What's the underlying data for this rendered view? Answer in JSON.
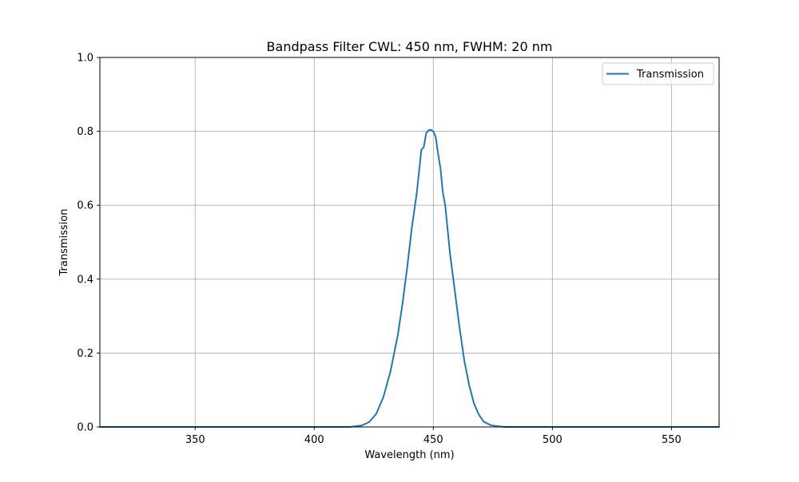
{
  "chart_data": {
    "type": "line",
    "title": "Bandpass Filter CWL: 450 nm, FWHM: 20 nm",
    "xlabel": "Wavelength (nm)",
    "ylabel": "Transmission",
    "xlim": [
      310,
      570
    ],
    "ylim": [
      0,
      1.0
    ],
    "xticks": [
      350,
      400,
      450,
      500,
      550
    ],
    "xtick_labels": [
      "350",
      "400",
      "450",
      "500",
      "550"
    ],
    "yticks": [
      0.0,
      0.2,
      0.4,
      0.6,
      0.8,
      1.0
    ],
    "ytick_labels": [
      "0.0",
      "0.2",
      "0.4",
      "0.6",
      "0.8",
      "1.0"
    ],
    "grid": true,
    "legend_position": "top-right",
    "series": [
      {
        "name": "Transmission",
        "color": "#1f77b4",
        "x": [
          310,
          350,
          400,
          415,
          420,
          423,
          426,
          429,
          432,
          435,
          437,
          439,
          441,
          443,
          444,
          445,
          446,
          447,
          448,
          449,
          450,
          451,
          452,
          453,
          454,
          455,
          456,
          457,
          459,
          461,
          463,
          465,
          467,
          469,
          471,
          474,
          477,
          480,
          485,
          500,
          550,
          570
        ],
        "y": [
          0.0,
          0.0,
          0.0,
          0.0,
          0.004,
          0.013,
          0.035,
          0.08,
          0.15,
          0.245,
          0.33,
          0.43,
          0.54,
          0.63,
          0.69,
          0.75,
          0.757,
          0.795,
          0.803,
          0.804,
          0.8,
          0.785,
          0.74,
          0.7,
          0.635,
          0.6,
          0.535,
          0.47,
          0.37,
          0.27,
          0.18,
          0.115,
          0.065,
          0.035,
          0.015,
          0.005,
          0.002,
          0.0,
          0.0,
          0.0,
          0.0,
          0.0
        ]
      }
    ]
  }
}
